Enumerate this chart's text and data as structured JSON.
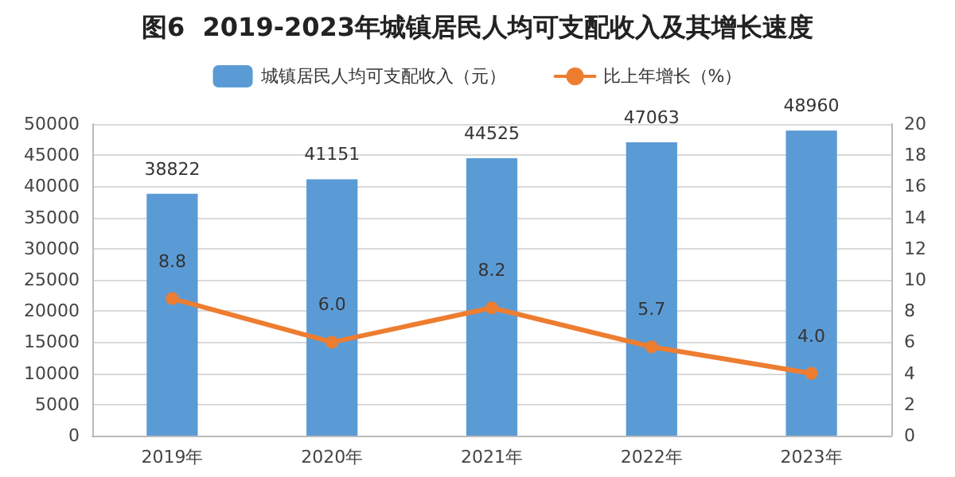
{
  "chart_data": {
    "type": "bar",
    "title": "图6  2019-2023年城镇居民人均可支配收入及其增长速度",
    "categories": [
      "2019年",
      "2020年",
      "2021年",
      "2022年",
      "2023年"
    ],
    "series": [
      {
        "name": "城镇居民人均可支配收入（元）",
        "color": "#5b9bd5",
        "values": [
          38822,
          41151,
          44525,
          47063,
          48960
        ],
        "value_labels": [
          "38822",
          "41151",
          "44525",
          "47063",
          "48960"
        ]
      },
      {
        "name": "比上年增长（%）",
        "type": "line",
        "axis": "y2",
        "color": "#ed7d31",
        "values": [
          8.8,
          6.0,
          8.2,
          5.7,
          4.0
        ],
        "value_labels": [
          "8.8",
          "6.0",
          "8.2",
          "5.7",
          "4.0"
        ]
      }
    ],
    "ylim": [
      0,
      50000
    ],
    "yticks": [
      0,
      5000,
      10000,
      15000,
      20000,
      25000,
      30000,
      35000,
      40000,
      45000,
      50000
    ],
    "y2lim": [
      0,
      20
    ],
    "y2ticks": [
      0,
      2,
      4,
      6,
      8,
      10,
      12,
      14,
      16,
      18,
      20
    ],
    "grid": "y",
    "legend": "top",
    "marker": "circle",
    "line_style": "solid"
  }
}
